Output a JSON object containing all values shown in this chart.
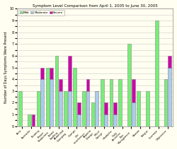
{
  "title": "Symptom Level Comparison from April 1, 2005 to June 30, 2005",
  "ylabel": "Number of Days Symptoms Were Present",
  "legend_labels": [
    "Mild",
    "Moderate",
    "Severe"
  ],
  "bg_color": "#fffef0",
  "plot_bg": "#fffef0",
  "grid_color": "#cccccc",
  "mild_color": "#77ee77",
  "moderate_color": "#aaccee",
  "severe_color": "#cc00aa",
  "ylim": [
    0,
    10
  ],
  "categories": [
    "Acne",
    "Backache",
    "Bloating",
    "Breast\nTenderness",
    "Breast\nSwelling",
    "Abdominal\nCramping",
    "Cramps",
    "Life\nInterference",
    "Appetite\nChange",
    "Mood\nSwings",
    "Headache",
    "Daily\nActivities",
    "Pain\nManagement",
    "Nausea",
    "Fatigue",
    "Insomnia",
    "Depression"
  ],
  "mild": [
    3,
    1,
    3,
    5,
    6,
    3,
    5,
    3,
    2,
    4,
    4,
    4,
    7,
    3,
    3,
    9,
    4
  ],
  "moderate": [
    0,
    0,
    4,
    4,
    3,
    3,
    1,
    3,
    3,
    1,
    1,
    0,
    2,
    0,
    0,
    0,
    5
  ],
  "severe": [
    0,
    1,
    1,
    1,
    1,
    3,
    1,
    1,
    0,
    1,
    1,
    0,
    2,
    0,
    0,
    0,
    1
  ]
}
